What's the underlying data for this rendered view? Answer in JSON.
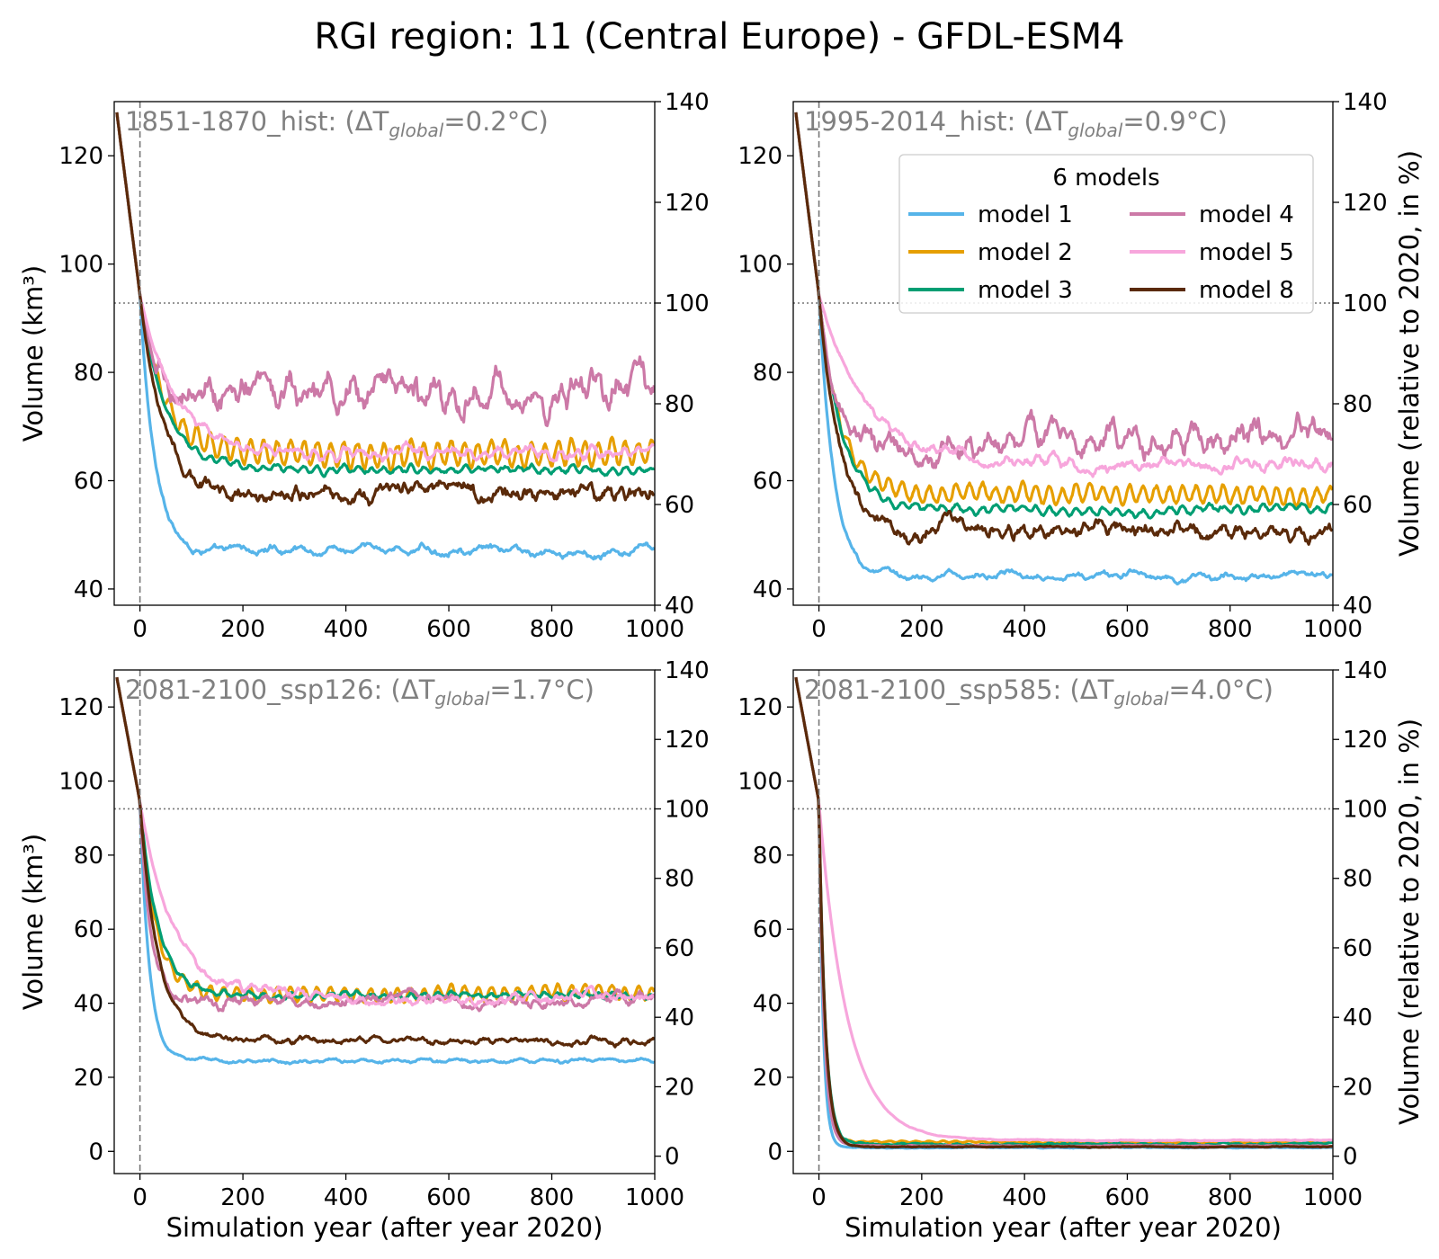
{
  "figure": {
    "title": "RGI region: 11 (Central Europe) - GFDL-ESM4"
  },
  "legend": {
    "title": "6 models",
    "entries": [
      {
        "name": "model 1",
        "color": "#56b4e9"
      },
      {
        "name": "model 2",
        "color": "#e69f00"
      },
      {
        "name": "model 3",
        "color": "#009e73"
      },
      {
        "name": "model 4",
        "color": "#cc79a7"
      },
      {
        "name": "model 5",
        "color": "#f7a6dc"
      },
      {
        "name": "model 8",
        "color": "#5a2a0a"
      }
    ]
  },
  "axes_text": {
    "ylabel_left": "Volume (km³)",
    "ylabel_right": "Volume (relative to 2020, in %)",
    "xlabel": "Simulation year (after year 2020)"
  },
  "chart_data": [
    {
      "type": "line",
      "panel": "top-left",
      "annotation": {
        "prefix": "1851-1870_hist: (ΔT",
        "sub": "global",
        "suffix": "=0.2°C)"
      },
      "xlim": [
        -50,
        1000
      ],
      "ylim": [
        37,
        130
      ],
      "y2lim": [
        40,
        140
      ],
      "xticks": [
        0,
        200,
        400,
        600,
        800,
        1000
      ],
      "yticks": [
        40,
        60,
        80,
        100,
        120
      ],
      "y2ticks": [
        40,
        60,
        80,
        100,
        120,
        140
      ],
      "ref_volume_2020": 94.3,
      "show_left_label": true,
      "show_right_label": false,
      "show_xlabel": false,
      "show_legend": false,
      "series": [
        {
          "name": "model 1",
          "start": 128,
          "plateau": 47,
          "tau": 28,
          "osc_amp": 0.4,
          "osc_period": 60,
          "noise": 0.6
        },
        {
          "name": "model 2",
          "start": 128,
          "plateau": 65,
          "tau": 45,
          "osc_amp": 2.2,
          "osc_period": 26,
          "noise": 0.6
        },
        {
          "name": "model 3",
          "start": 128,
          "plateau": 62,
          "tau": 50,
          "osc_amp": 0.5,
          "osc_period": 26,
          "noise": 0.4
        },
        {
          "name": "model 4",
          "start": 128,
          "plateau": 76,
          "tau": 25,
          "osc_amp": 1.5,
          "osc_period": 40,
          "noise": 2.6
        },
        {
          "name": "model 5",
          "start": 128,
          "plateau": 65,
          "tau": 70,
          "osc_amp": 0.6,
          "osc_period": 30,
          "noise": 0.8
        },
        {
          "name": "model 8",
          "start": 128,
          "plateau": 57,
          "tau": 45,
          "osc_amp": 0.4,
          "osc_period": 30,
          "noise": 1.3
        }
      ]
    },
    {
      "type": "line",
      "panel": "top-right",
      "annotation": {
        "prefix": "1995-2014_hist: (ΔT",
        "sub": "global",
        "suffix": "=0.9°C)"
      },
      "xlim": [
        -50,
        1000
      ],
      "ylim": [
        37,
        130
      ],
      "y2lim": [
        40,
        140
      ],
      "xticks": [
        0,
        200,
        400,
        600,
        800,
        1000
      ],
      "yticks": [
        40,
        60,
        80,
        100,
        120
      ],
      "y2ticks": [
        40,
        60,
        80,
        100,
        120,
        140
      ],
      "ref_volume_2020": 94.3,
      "show_left_label": false,
      "show_right_label": true,
      "show_xlabel": false,
      "show_legend": true,
      "series": [
        {
          "name": "model 1",
          "start": 128,
          "plateau": 42.5,
          "tau": 28,
          "osc_amp": 0.3,
          "osc_period": 60,
          "noise": 0.5
        },
        {
          "name": "model 2",
          "start": 128,
          "plateau": 57.5,
          "tau": 40,
          "osc_amp": 1.5,
          "osc_period": 26,
          "noise": 0.5
        },
        {
          "name": "model 3",
          "start": 128,
          "plateau": 54.5,
          "tau": 45,
          "osc_amp": 0.6,
          "osc_period": 26,
          "noise": 0.4
        },
        {
          "name": "model 4",
          "start": 128,
          "plateau": 67,
          "tau": 25,
          "osc_amp": 1.2,
          "osc_period": 40,
          "noise": 2.0
        },
        {
          "name": "model 5",
          "start": 128,
          "plateau": 63,
          "tau": 90,
          "osc_amp": 0.5,
          "osc_period": 30,
          "noise": 0.9
        },
        {
          "name": "model 8",
          "start": 128,
          "plateau": 51,
          "tau": 40,
          "osc_amp": 0.4,
          "osc_period": 30,
          "noise": 1.2
        }
      ]
    },
    {
      "type": "line",
      "panel": "bottom-left",
      "annotation": {
        "prefix": "2081-2100_ssp126: (ΔT",
        "sub": "global",
        "suffix": "=1.7°C)"
      },
      "xlim": [
        -50,
        1000
      ],
      "ylim": [
        -6,
        130
      ],
      "y2lim": [
        -5,
        140
      ],
      "xticks": [
        0,
        200,
        400,
        600,
        800,
        1000
      ],
      "yticks": [
        0,
        20,
        40,
        60,
        80,
        100,
        120
      ],
      "y2ticks": [
        0,
        20,
        40,
        60,
        80,
        100,
        120,
        140
      ],
      "ref_volume_2020": 94.3,
      "show_left_label": true,
      "show_right_label": false,
      "show_xlabel": true,
      "show_legend": false,
      "series": [
        {
          "name": "model 1",
          "start": 128,
          "plateau": 24.5,
          "tau": 18,
          "osc_amp": 0.3,
          "osc_period": 60,
          "noise": 0.4
        },
        {
          "name": "model 2",
          "start": 128,
          "plateau": 42.5,
          "tau": 30,
          "osc_amp": 1.8,
          "osc_period": 26,
          "noise": 0.5
        },
        {
          "name": "model 3",
          "start": 128,
          "plateau": 42,
          "tau": 35,
          "osc_amp": 0.6,
          "osc_period": 26,
          "noise": 0.5
        },
        {
          "name": "model 4",
          "start": 128,
          "plateau": 40.5,
          "tau": 20,
          "osc_amp": 0.5,
          "osc_period": 40,
          "noise": 1.2
        },
        {
          "name": "model 5",
          "start": 128,
          "plateau": 41.5,
          "tau": 65,
          "osc_amp": 0.5,
          "osc_period": 30,
          "noise": 1.0
        },
        {
          "name": "model 8",
          "start": 128,
          "plateau": 30,
          "tau": 35,
          "osc_amp": 0.3,
          "osc_period": 30,
          "noise": 0.7
        }
      ]
    },
    {
      "type": "line",
      "panel": "bottom-right",
      "annotation": {
        "prefix": "2081-2100_ssp585: (ΔT",
        "sub": "global",
        "suffix": "=4.0°C)"
      },
      "xlim": [
        -50,
        1000
      ],
      "ylim": [
        -6,
        130
      ],
      "y2lim": [
        -5,
        140
      ],
      "xticks": [
        0,
        200,
        400,
        600,
        800,
        1000
      ],
      "yticks": [
        0,
        20,
        40,
        60,
        80,
        100,
        120
      ],
      "y2ticks": [
        0,
        20,
        40,
        60,
        80,
        100,
        120,
        140
      ],
      "ref_volume_2020": 94.3,
      "show_left_label": false,
      "show_right_label": true,
      "show_xlabel": true,
      "show_legend": false,
      "series": [
        {
          "name": "model 1",
          "start": 128,
          "plateau": 1.0,
          "tau": 8,
          "osc_amp": 0,
          "osc_period": 60,
          "noise": 0.1
        },
        {
          "name": "model 2",
          "start": 128,
          "plateau": 2.5,
          "tau": 10,
          "osc_amp": 0.2,
          "osc_period": 26,
          "noise": 0.1
        },
        {
          "name": "model 3",
          "start": 128,
          "plateau": 2.0,
          "tau": 12,
          "osc_amp": 0.1,
          "osc_period": 26,
          "noise": 0.2
        },
        {
          "name": "model 4",
          "start": 128,
          "plateau": 1.5,
          "tau": 10,
          "osc_amp": 0,
          "osc_period": 40,
          "noise": 0.1
        },
        {
          "name": "model 5",
          "start": 128,
          "plateau": 3.0,
          "tau": 55,
          "osc_amp": 0,
          "osc_period": 30,
          "noise": 0.1
        },
        {
          "name": "model 8",
          "start": 128,
          "plateau": 1.2,
          "tau": 12,
          "osc_amp": 0,
          "osc_period": 30,
          "noise": 0.1
        }
      ]
    }
  ]
}
